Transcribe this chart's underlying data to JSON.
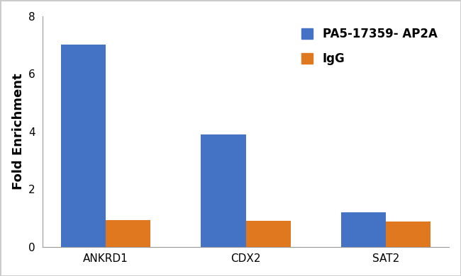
{
  "categories": [
    "ANKRD1",
    "CDX2",
    "SAT2"
  ],
  "series": [
    {
      "label": "PA5-17359- AP2A",
      "color": "#4472C4",
      "values": [
        7.0,
        3.9,
        1.2
      ]
    },
    {
      "label": "IgG",
      "color": "#E07820",
      "values": [
        0.92,
        0.9,
        0.88
      ]
    }
  ],
  "ylabel": "Fold Enrichment",
  "ylim": [
    0,
    8
  ],
  "yticks": [
    0,
    2,
    4,
    6,
    8
  ],
  "bar_width": 0.32,
  "background_color": "#ffffff",
  "plot_bg_color": "#ffffff",
  "border_color": "#cccccc",
  "legend_fontsize": 12,
  "ylabel_fontsize": 13,
  "tick_fontsize": 11
}
